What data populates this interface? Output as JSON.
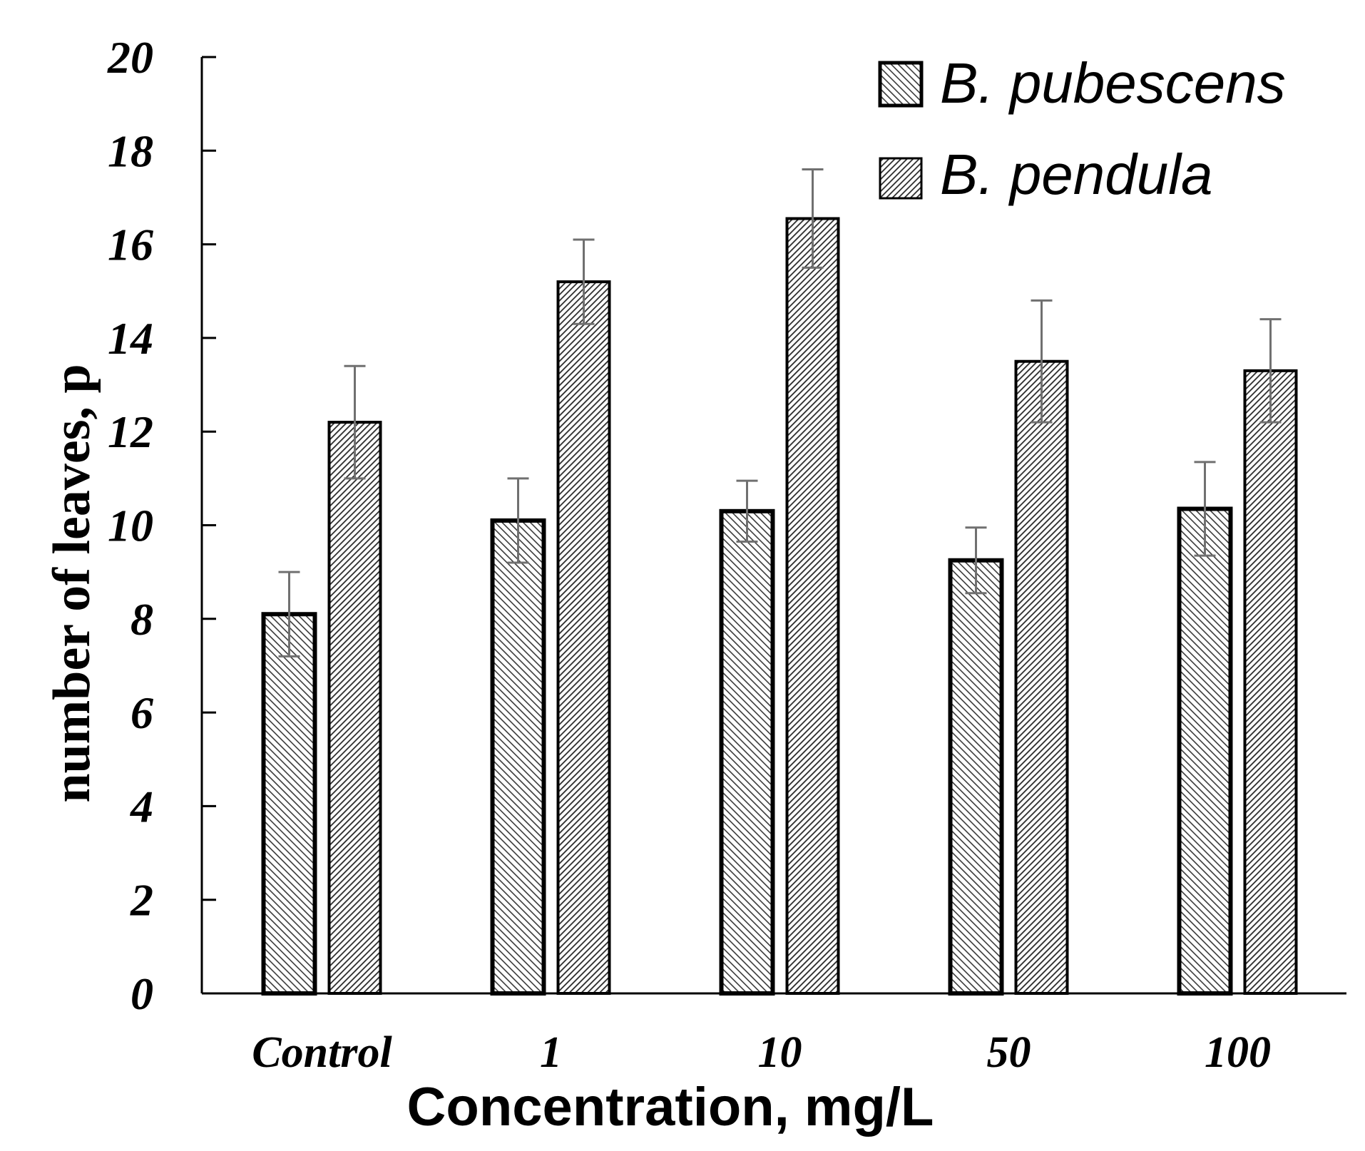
{
  "chart_data": {
    "type": "bar",
    "title": "",
    "xlabel": "Concentration, mg/L",
    "ylabel": "number of leaves, p",
    "categories": [
      "Control",
      "1",
      "10",
      "50",
      "100"
    ],
    "ylim": [
      0,
      20
    ],
    "yticks": [
      0,
      2,
      4,
      6,
      8,
      10,
      12,
      14,
      16,
      18,
      20
    ],
    "grid": false,
    "legend_position": "top-right",
    "series": [
      {
        "name": "B. pubescens",
        "pattern": "fine-diagonal-hatch",
        "values": [
          8.1,
          10.1,
          10.3,
          9.25,
          10.35
        ],
        "errors": [
          0.9,
          0.9,
          0.65,
          0.7,
          1.0
        ]
      },
      {
        "name": "B. pendula",
        "pattern": "dense-diagonal-hatch",
        "values": [
          12.2,
          15.2,
          16.55,
          13.5,
          13.3
        ],
        "errors": [
          1.2,
          0.9,
          1.05,
          1.3,
          1.1
        ]
      }
    ],
    "colors": {
      "axis": "#000000",
      "bar_outline": "#000000",
      "error_bar": "#707070",
      "hatch": "#3a3a3a",
      "background": "#ffffff"
    }
  }
}
